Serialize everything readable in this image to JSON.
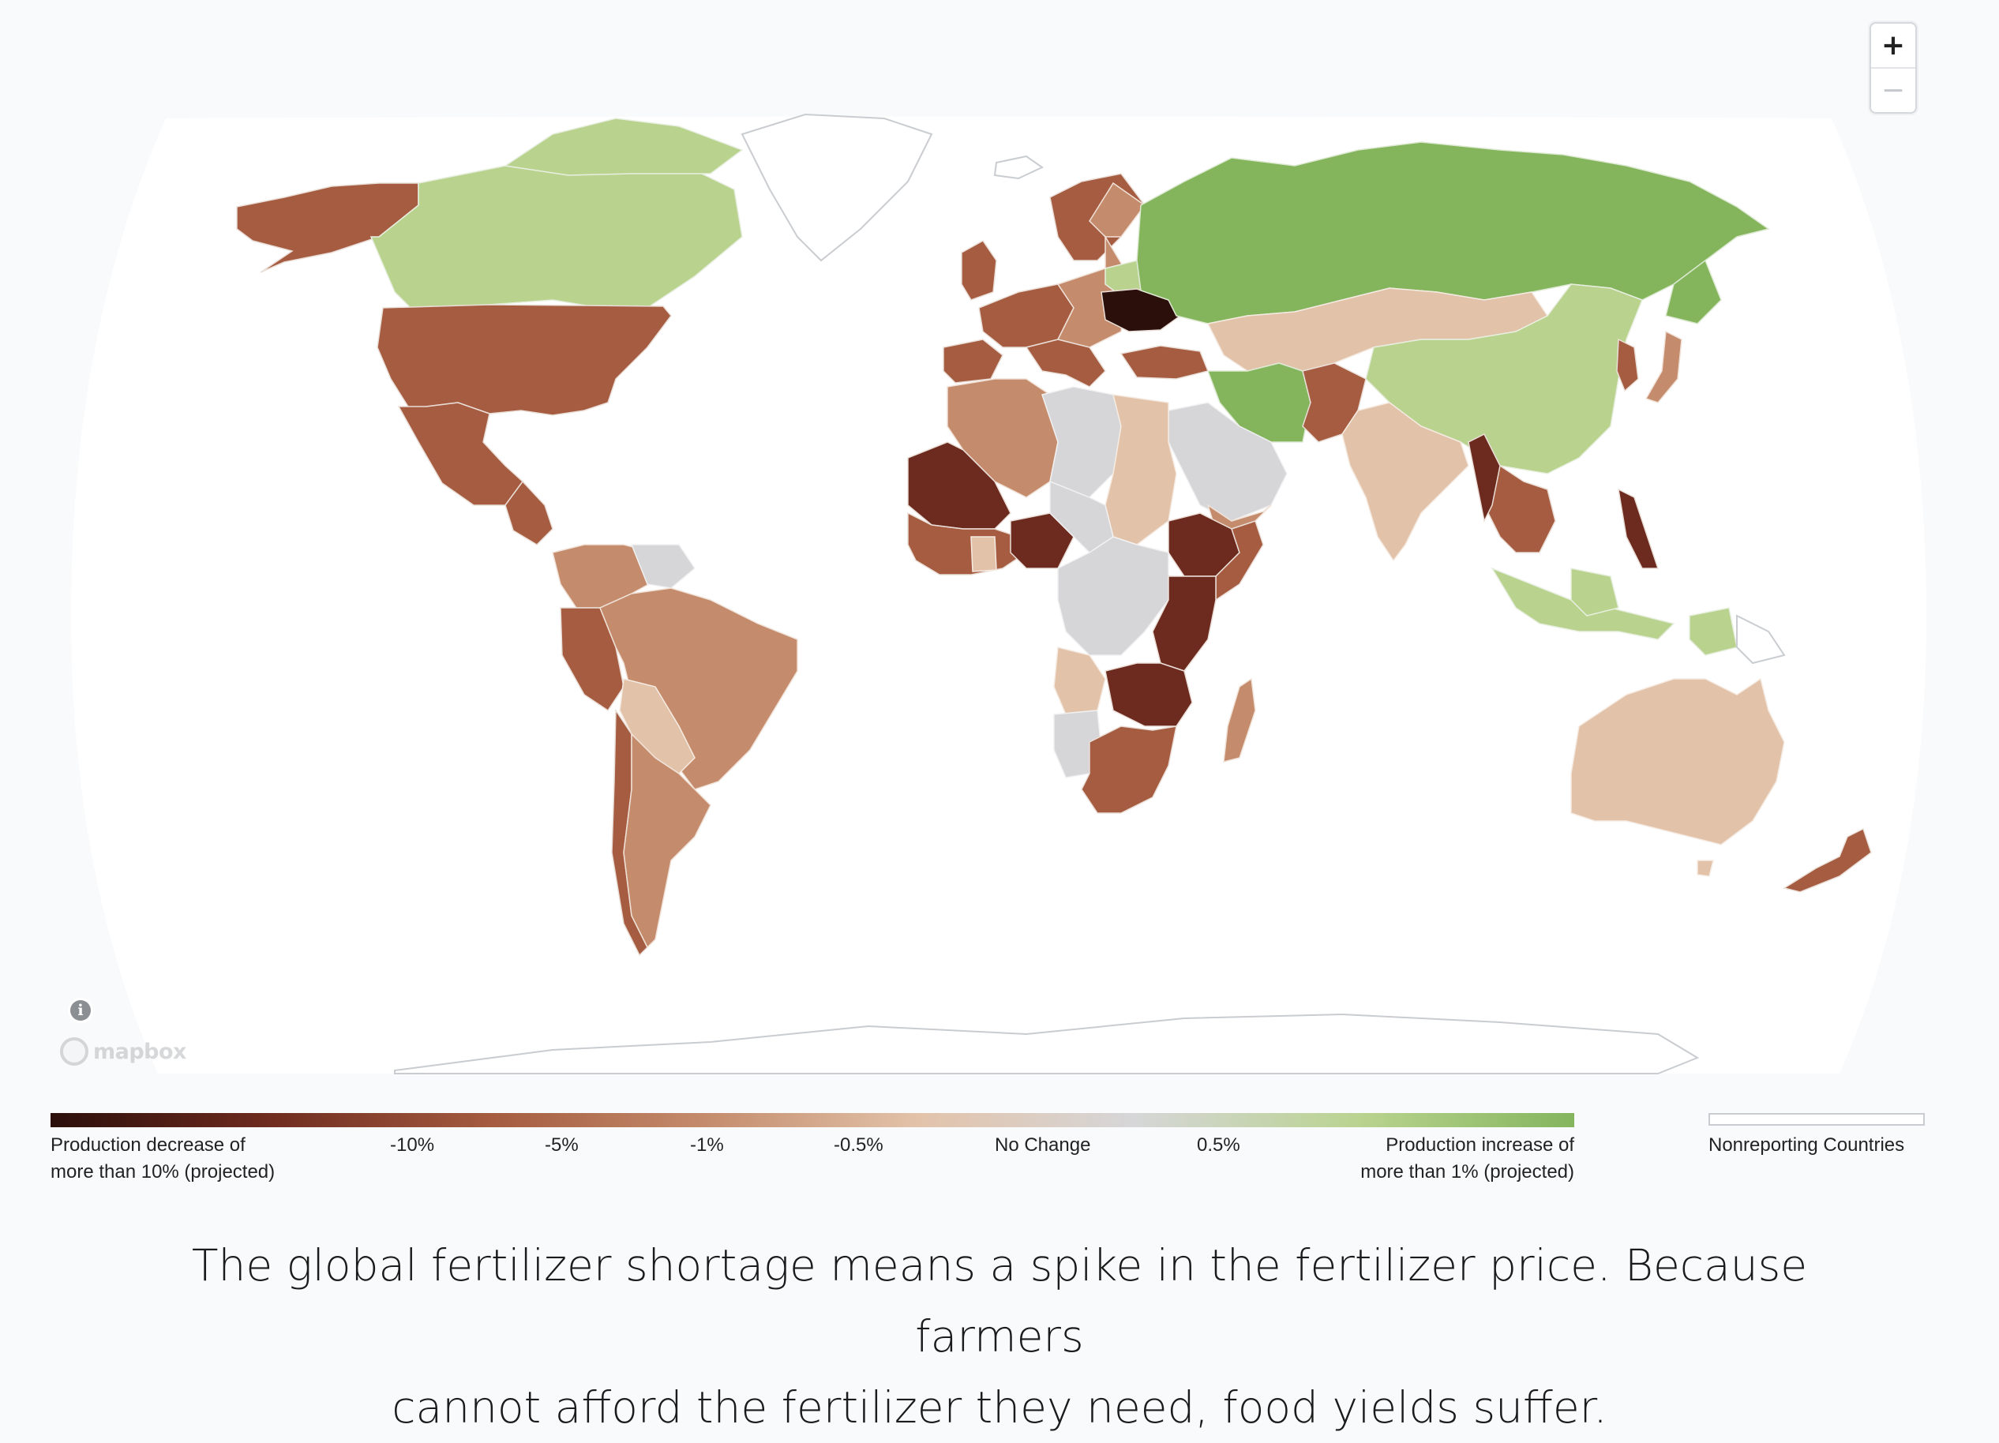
{
  "map": {
    "zoom_in_label": "+",
    "zoom_out_label": "−",
    "attribution_icon": "info-icon",
    "attribution_logo_text": "mapbox"
  },
  "colors": {
    "ocean": "#ffffff",
    "background": "#f9fafb",
    "nonreporting": "#ffffff",
    "no_change": "#d6d6d8",
    "scale": [
      "#2b0f0b",
      "#6d2a1e",
      "#a55c40",
      "#c48c6c",
      "#e2c3aa",
      "#d6d6d8",
      "#b9d38f",
      "#84b55d"
    ]
  },
  "legend": {
    "labels": [
      {
        "line1": "Production decrease of",
        "line2": "more than 10% (projected)"
      },
      {
        "line1": "-10%",
        "line2": ""
      },
      {
        "line1": "-5%",
        "line2": ""
      },
      {
        "line1": "-1%",
        "line2": ""
      },
      {
        "line1": "-0.5%",
        "line2": ""
      },
      {
        "line1": "No Change",
        "line2": ""
      },
      {
        "line1": "0.5%",
        "line2": ""
      },
      {
        "line1": "Production increase of",
        "line2": "more than 1% (projected)"
      }
    ],
    "nonreporting_label": "Nonreporting Countries"
  },
  "caption": {
    "line1": "The global fertilizer shortage means a spike in the fertilizer price. Because farmers",
    "line2": "cannot afford the fertilizer they need, food yields suffer."
  },
  "regions": [
    {
      "name": "alaska",
      "class": "decrease-5"
    },
    {
      "name": "canada",
      "class": "increase-0.5"
    },
    {
      "name": "united-states",
      "class": "decrease-5"
    },
    {
      "name": "mexico",
      "class": "decrease-5"
    },
    {
      "name": "central-america",
      "class": "decrease-5"
    },
    {
      "name": "colombia-venezuela",
      "class": "decrease-1"
    },
    {
      "name": "guianas",
      "class": "no-change"
    },
    {
      "name": "brazil",
      "class": "decrease-1"
    },
    {
      "name": "peru",
      "class": "decrease-5"
    },
    {
      "name": "bolivia-paraguay",
      "class": "decrease-0.5"
    },
    {
      "name": "chile",
      "class": "decrease-5"
    },
    {
      "name": "argentina",
      "class": "decrease-1"
    },
    {
      "name": "greenland",
      "class": "nonreporting"
    },
    {
      "name": "iceland",
      "class": "nonreporting"
    },
    {
      "name": "scandinavia",
      "class": "decrease-5"
    },
    {
      "name": "western-europe",
      "class": "decrease-5"
    },
    {
      "name": "spain-portugal",
      "class": "decrease-5"
    },
    {
      "name": "eastern-europe",
      "class": "decrease-1"
    },
    {
      "name": "ukraine",
      "class": "decrease-max"
    },
    {
      "name": "russia",
      "class": "increase-max"
    },
    {
      "name": "kazakhstan-mongolia",
      "class": "decrease-0.5"
    },
    {
      "name": "china",
      "class": "increase-0.5"
    },
    {
      "name": "korea",
      "class": "decrease-10"
    },
    {
      "name": "japan",
      "class": "decrease-1"
    },
    {
      "name": "iran",
      "class": "increase-max"
    },
    {
      "name": "afghanistan-pakistan",
      "class": "decrease-5"
    },
    {
      "name": "india",
      "class": "decrease-0.5"
    },
    {
      "name": "southeast-asia",
      "class": "decrease-10"
    },
    {
      "name": "philippines",
      "class": "decrease-10"
    },
    {
      "name": "indonesia",
      "class": "increase-0.5"
    },
    {
      "name": "papua",
      "class": "increase-0.5"
    },
    {
      "name": "australia",
      "class": "decrease-0.5"
    },
    {
      "name": "new-zealand",
      "class": "decrease-5"
    },
    {
      "name": "north-africa-west",
      "class": "decrease-1"
    },
    {
      "name": "sahara-central",
      "class": "no-change"
    },
    {
      "name": "egypt-sudan",
      "class": "decrease-0.5"
    },
    {
      "name": "arabia",
      "class": "no-change"
    },
    {
      "name": "turkey",
      "class": "decrease-5"
    },
    {
      "name": "mali-mauritania",
      "class": "decrease-10"
    },
    {
      "name": "west-africa",
      "class": "decrease-5"
    },
    {
      "name": "nigeria",
      "class": "decrease-10"
    },
    {
      "name": "ethiopia",
      "class": "decrease-10"
    },
    {
      "name": "central-africa",
      "class": "no-change"
    },
    {
      "name": "east-africa",
      "class": "decrease-10"
    },
    {
      "name": "angola",
      "class": "decrease-0.5"
    },
    {
      "name": "zambia-mozambique",
      "class": "decrease-10"
    },
    {
      "name": "namibia",
      "class": "no-change"
    },
    {
      "name": "south-africa",
      "class": "decrease-5"
    },
    {
      "name": "madagascar",
      "class": "decrease-1"
    },
    {
      "name": "antarctica",
      "class": "nonreporting"
    }
  ]
}
